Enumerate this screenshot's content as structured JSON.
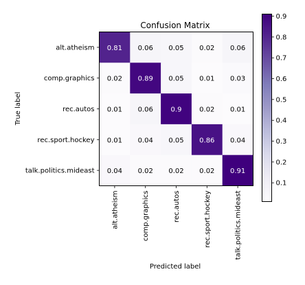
{
  "chart_data": {
    "type": "heatmap",
    "title": "Confusion Matrix",
    "xlabel": "Predicted label",
    "ylabel": "True label",
    "x_categories": [
      "alt.atheism",
      "comp.graphics",
      "rec.autos",
      "rec.sport.hockey",
      "talk.politics.mideast"
    ],
    "y_categories": [
      "alt.atheism",
      "comp.graphics",
      "rec.autos",
      "rec.sport.hockey",
      "talk.politics.mideast"
    ],
    "values": [
      [
        0.81,
        0.06,
        0.05,
        0.02,
        0.06
      ],
      [
        0.02,
        0.89,
        0.05,
        0.01,
        0.03
      ],
      [
        0.01,
        0.06,
        0.9,
        0.02,
        0.01
      ],
      [
        0.01,
        0.04,
        0.05,
        0.86,
        0.04
      ],
      [
        0.04,
        0.02,
        0.02,
        0.02,
        0.91
      ]
    ],
    "colormap": "Purples",
    "colormap_stops": [
      "#fcfbfd",
      "#efedf5",
      "#dadaeb",
      "#bcbddc",
      "#9e9ac8",
      "#807dba",
      "#6a51a3",
      "#54278f",
      "#3f007d"
    ],
    "color_range": [
      0.01,
      0.91
    ],
    "colorbar_ticks": [
      0.1,
      0.2,
      0.3,
      0.4,
      0.5,
      0.6,
      0.7,
      0.8,
      0.9
    ],
    "text_color_dark": "#000000",
    "text_color_light": "#ffffff",
    "text_color_threshold": 0.455
  }
}
